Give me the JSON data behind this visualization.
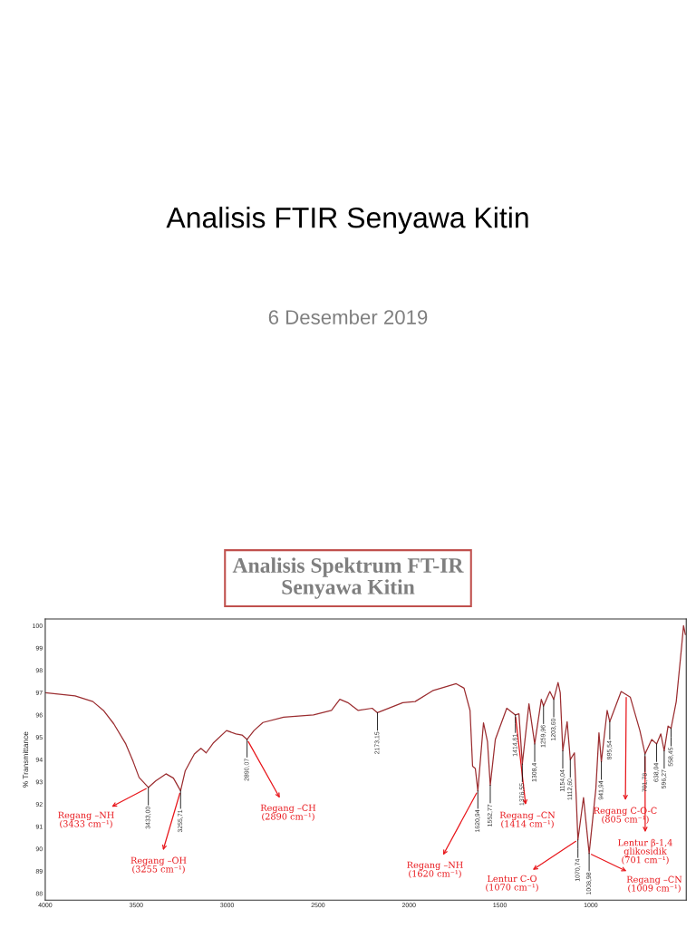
{
  "chart_data": {
    "type": "line",
    "title": "Analisis FTIR Senyawa Kitin",
    "subtitle": "6 Desember 2019",
    "ylabel": "% Transmittance",
    "xlim": [
      4000,
      475
    ],
    "xticks": [
      4000,
      3500,
      3000,
      2500,
      2000,
      1500,
      1000
    ],
    "ylim": [
      87.7,
      100.3
    ],
    "yticks": [
      88,
      89,
      90,
      91,
      92,
      93,
      94,
      95,
      96,
      97,
      98,
      99,
      100
    ],
    "grid": false,
    "legend": false,
    "marker": "none",
    "line_style": "solid",
    "series": [
      {
        "color": "#9b2d30",
        "x": [
          4000,
          3836,
          3738,
          3680,
          3623,
          3557,
          3516,
          3484,
          3433.0,
          3393,
          3336,
          3295,
          3255.71,
          3230,
          3180,
          3144,
          3115,
          3074,
          3003,
          2951,
          2918,
          2890.07,
          2852,
          2803,
          2689,
          2525,
          2426,
          2380,
          2336,
          2279,
          2202,
          2173.15,
          2034,
          1966,
          1866,
          1740,
          1697,
          1664,
          1650,
          1635,
          1620.94,
          1590,
          1568,
          1552.77,
          1525,
          1462,
          1414.61,
          1395,
          1376.55,
          1340,
          1308.4,
          1272,
          1259.96,
          1225,
          1203.6,
          1180,
          1168,
          1154.04,
          1130,
          1112.6,
          1090,
          1070.74,
          1040,
          1008.98,
          972,
          955,
          941.94,
          910,
          895.54,
          833,
          783,
          730,
          701.78,
          665,
          638.04,
          615,
          596.27,
          575,
          558.45,
          530,
          500,
          490,
          480
        ],
        "values": [
          97.0,
          96.85,
          96.6,
          96.2,
          95.6,
          94.7,
          93.9,
          93.2,
          92.75,
          93.04,
          93.36,
          93.17,
          92.6,
          93.5,
          94.25,
          94.5,
          94.3,
          94.76,
          95.3,
          95.15,
          95.1,
          94.9,
          95.3,
          95.66,
          95.9,
          96.0,
          96.2,
          96.7,
          96.55,
          96.2,
          96.3,
          96.1,
          96.55,
          96.6,
          97.1,
          97.4,
          97.2,
          96.2,
          93.7,
          93.6,
          92.6,
          95.65,
          94.8,
          92.85,
          94.9,
          96.3,
          96.0,
          96.05,
          93.8,
          96.5,
          94.7,
          96.7,
          96.4,
          97.05,
          96.7,
          97.45,
          97.0,
          94.4,
          95.7,
          94.0,
          94.3,
          90.4,
          92.3,
          89.8,
          92.7,
          95.2,
          93.9,
          96.2,
          95.7,
          97.05,
          96.8,
          95.3,
          94.25,
          94.9,
          94.7,
          95.15,
          94.4,
          95.5,
          95.4,
          96.6,
          99.1,
          100.0,
          99.6
        ]
      }
    ],
    "annotations": [
      "Analisis Spektrum FT-IR\nSenyawa Kitin",
      {
        "text": "Regang –NH\n(3433 cm⁻¹)",
        "x": 3433.0,
        "y": 92.75
      },
      {
        "text": "Regang –OH\n(3255 cm⁻¹)",
        "x": 3255.71,
        "y": 92.6
      },
      {
        "text": "Regang –CH\n(2890 cm⁻¹)",
        "x": 2890.07,
        "y": 94.9
      },
      {
        "text": "Regang –NH\n(1620 cm⁻¹)",
        "x": 1620.94,
        "y": 92.6
      },
      {
        "text": "Regang –CN\n(1414 cm⁻¹)",
        "x": 1414.61,
        "y": 96.0
      },
      {
        "text": "Lentur C-O\n(1070 cm⁻¹)",
        "x": 1070.74,
        "y": 90.4
      },
      {
        "text": "Regang C-O-C\n(805 cm⁻¹)",
        "x": 805,
        "y": 96.9
      },
      {
        "text": "Lentur β-1,4\nglikosidik\n(701 cm⁻¹)",
        "x": 701.78,
        "y": 94.25
      },
      {
        "text": "Regang –CN\n(1009 cm⁻¹)",
        "x": 1008.98,
        "y": 89.8
      },
      {
        "text": "3433,00",
        "x": 3433.0,
        "y": 92.75
      },
      {
        "text": "3255,71",
        "x": 3255.71,
        "y": 92.6
      },
      {
        "text": "2890,07",
        "x": 2890.07,
        "y": 94.9
      },
      {
        "text": "2173,15",
        "x": 2173.15,
        "y": 96.1
      },
      {
        "text": "1620,94",
        "x": 1620.94,
        "y": 92.6
      },
      {
        "text": "1552,77",
        "x": 1552.77,
        "y": 92.85
      },
      {
        "text": "1414,61",
        "x": 1414.61,
        "y": 96.0
      },
      {
        "text": "1376,55",
        "x": 1376.55,
        "y": 93.8
      },
      {
        "text": "1308,4",
        "x": 1308.4,
        "y": 94.7
      },
      {
        "text": "1259,96",
        "x": 1259.96,
        "y": 96.4
      },
      {
        "text": "1203,60",
        "x": 1203.6,
        "y": 96.7
      },
      {
        "text": "1154,04",
        "x": 1154.04,
        "y": 94.4
      },
      {
        "text": "1112,60",
        "x": 1112.6,
        "y": 94.0
      },
      {
        "text": "1070,74",
        "x": 1070.74,
        "y": 90.4
      },
      {
        "text": "1008,98",
        "x": 1008.98,
        "y": 89.8
      },
      {
        "text": "941,94",
        "x": 941.94,
        "y": 93.9
      },
      {
        "text": "895,54",
        "x": 895.54,
        "y": 95.7
      },
      {
        "text": "701,78",
        "x": 701.78,
        "y": 94.25
      },
      {
        "text": "638,04",
        "x": 638.04,
        "y": 94.7
      },
      {
        "text": "596,27",
        "x": 596.27,
        "y": 94.4
      },
      {
        "text": "558,45",
        "x": 558.45,
        "y": 95.4
      }
    ]
  }
}
